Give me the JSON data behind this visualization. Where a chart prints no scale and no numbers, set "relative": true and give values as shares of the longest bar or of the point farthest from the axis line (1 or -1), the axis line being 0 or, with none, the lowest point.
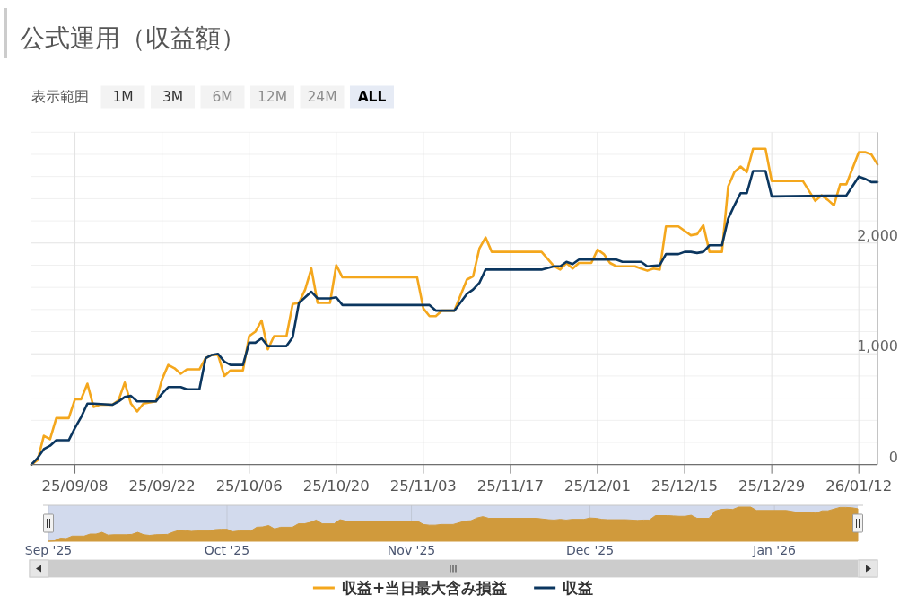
{
  "chart_data": [
    {
      "type": "line",
      "title": "公式運用（収益額）",
      "annotations": [
        "表示範囲",
        "1M",
        "3M",
        "6M",
        "12M",
        "24M",
        "ALL"
      ],
      "xlim": [
        "2025-09-01",
        "2026-01-15"
      ],
      "xticks": [
        {
          "value": "2025-09-08",
          "label": "25/09/08"
        },
        {
          "value": "2025-09-22",
          "label": "25/09/22"
        },
        {
          "value": "2025-10-06",
          "label": "25/10/06"
        },
        {
          "value": "2025-10-20",
          "label": "25/10/20"
        },
        {
          "value": "2025-11-03",
          "label": "25/11/03"
        },
        {
          "value": "2025-11-17",
          "label": "25/11/17"
        },
        {
          "value": "2025-12-01",
          "label": "25/12/01"
        },
        {
          "value": "2025-12-15",
          "label": "25/12/15"
        },
        {
          "value": "2025-12-29",
          "label": "25/12/29"
        },
        {
          "value": "2026-01-12",
          "label": "26/01/12"
        }
      ],
      "ylim": [
        0,
        3000
      ],
      "yticks": [
        0,
        {
          "value": 200,
          "label": null
        },
        {
          "value": 400,
          "label": null
        },
        {
          "value": 600,
          "label": null
        },
        {
          "value": 800,
          "label": null
        },
        {
          "value": 1000,
          "label": "1,000"
        },
        {
          "value": 1200,
          "label": null
        },
        {
          "value": 1400,
          "label": null
        },
        {
          "value": 1600,
          "label": null
        },
        {
          "value": 1800,
          "label": null
        },
        {
          "value": 2000,
          "label": "2,000"
        },
        {
          "value": 2200,
          "label": null
        },
        {
          "value": 2400,
          "label": null
        },
        {
          "value": 2600,
          "label": null
        },
        {
          "value": 2800,
          "label": null
        },
        {
          "value": 3000,
          "label": null
        }
      ],
      "grid": true,
      "legend": "bottom",
      "series": [
        {
          "name": "収益+当日最大含み損益",
          "color": "#f4a71d",
          "x": [
            "2025-09-01",
            "2025-09-02",
            "2025-09-03",
            "2025-09-04",
            "2025-09-05",
            "2025-09-07",
            "2025-09-08",
            "2025-09-09",
            "2025-09-10",
            "2025-09-11",
            "2025-09-12",
            "2025-09-14",
            "2025-09-15",
            "2025-09-16",
            "2025-09-17",
            "2025-09-18",
            "2025-09-19",
            "2025-09-21",
            "2025-09-22",
            "2025-09-23",
            "2025-09-24",
            "2025-09-25",
            "2025-09-26",
            "2025-09-28",
            "2025-09-29",
            "2025-09-30",
            "2025-10-01",
            "2025-10-02",
            "2025-10-03",
            "2025-10-05",
            "2025-10-06",
            "2025-10-07",
            "2025-10-08",
            "2025-10-09",
            "2025-10-10",
            "2025-10-12",
            "2025-10-13",
            "2025-10-14",
            "2025-10-15",
            "2025-10-16",
            "2025-10-17",
            "2025-10-19",
            "2025-10-20",
            "2025-10-21",
            "2025-11-02",
            "2025-11-03",
            "2025-11-04",
            "2025-11-05",
            "2025-11-06",
            "2025-11-08",
            "2025-11-10",
            "2025-11-11",
            "2025-11-12",
            "2025-11-13",
            "2025-11-14",
            "2025-11-22",
            "2025-11-24",
            "2025-11-25",
            "2025-11-26",
            "2025-11-27",
            "2025-11-28",
            "2025-11-30",
            "2025-12-01",
            "2025-12-02",
            "2025-12-03",
            "2025-12-04",
            "2025-12-05",
            "2025-12-07",
            "2025-12-08",
            "2025-12-09",
            "2025-12-10",
            "2025-12-11",
            "2025-12-12",
            "2025-12-14",
            "2025-12-15",
            "2025-12-16",
            "2025-12-17",
            "2025-12-18",
            "2025-12-19",
            "2025-12-21",
            "2025-12-22",
            "2025-12-23",
            "2025-12-24",
            "2025-12-25",
            "2025-12-26",
            "2025-12-28",
            "2025-12-29",
            "2026-01-03",
            "2026-01-05",
            "2026-01-06",
            "2026-01-07",
            "2026-01-08",
            "2026-01-09",
            "2026-01-10",
            "2026-01-12",
            "2026-01-13",
            "2026-01-14",
            "2026-01-15"
          ],
          "values": [
            0,
            40,
            260,
            230,
            420,
            420,
            590,
            590,
            730,
            520,
            540,
            540,
            580,
            740,
            550,
            480,
            550,
            570,
            770,
            900,
            870,
            820,
            860,
            860,
            960,
            990,
            990,
            800,
            850,
            850,
            1160,
            1200,
            1300,
            1040,
            1160,
            1160,
            1450,
            1460,
            1580,
            1770,
            1460,
            1460,
            1800,
            1690,
            1690,
            1410,
            1340,
            1340,
            1390,
            1390,
            1670,
            1700,
            1950,
            2050,
            1920,
            1920,
            1790,
            1760,
            1820,
            1770,
            1820,
            1820,
            1940,
            1900,
            1820,
            1790,
            1790,
            1790,
            1770,
            1750,
            1770,
            1760,
            2150,
            2150,
            2110,
            2070,
            2080,
            2160,
            1920,
            1920,
            2510,
            2640,
            2690,
            2640,
            2850,
            2850,
            2560,
            2560,
            2380,
            2430,
            2390,
            2340,
            2530,
            2530,
            2820,
            2820,
            2800,
            2710
          ]
        },
        {
          "name": "収益",
          "color": "#0b365f",
          "x": [
            "2025-09-01",
            "2025-09-02",
            "2025-09-03",
            "2025-09-04",
            "2025-09-05",
            "2025-09-07",
            "2025-09-08",
            "2025-09-09",
            "2025-09-10",
            "2025-09-11",
            "2025-09-14",
            "2025-09-15",
            "2025-09-16",
            "2025-09-17",
            "2025-09-18",
            "2025-09-21",
            "2025-09-22",
            "2025-09-23",
            "2025-09-25",
            "2025-09-26",
            "2025-09-28",
            "2025-09-29",
            "2025-09-30",
            "2025-10-01",
            "2025-10-02",
            "2025-10-03",
            "2025-10-05",
            "2025-10-06",
            "2025-10-07",
            "2025-10-08",
            "2025-10-09",
            "2025-10-12",
            "2025-10-13",
            "2025-10-14",
            "2025-10-15",
            "2025-10-16",
            "2025-10-17",
            "2025-10-19",
            "2025-10-20",
            "2025-10-21",
            "2025-11-04",
            "2025-11-05",
            "2025-11-08",
            "2025-11-10",
            "2025-11-11",
            "2025-11-12",
            "2025-11-13",
            "2025-11-22",
            "2025-11-24",
            "2025-11-25",
            "2025-11-26",
            "2025-11-27",
            "2025-11-28",
            "2025-12-04",
            "2025-12-05",
            "2025-12-08",
            "2025-12-09",
            "2025-12-11",
            "2025-12-12",
            "2025-12-14",
            "2025-12-15",
            "2025-12-16",
            "2025-12-17",
            "2025-12-18",
            "2025-12-19",
            "2025-12-21",
            "2025-12-22",
            "2025-12-23",
            "2025-12-24",
            "2025-12-25",
            "2025-12-26",
            "2025-12-28",
            "2025-12-29",
            "2026-01-10",
            "2026-01-12",
            "2026-01-13",
            "2026-01-14",
            "2026-01-15"
          ],
          "values": [
            0,
            60,
            140,
            170,
            220,
            220,
            330,
            430,
            550,
            550,
            540,
            570,
            610,
            620,
            570,
            570,
            640,
            700,
            700,
            680,
            680,
            960,
            990,
            1000,
            930,
            900,
            900,
            1100,
            1100,
            1140,
            1070,
            1070,
            1150,
            1460,
            1510,
            1560,
            1500,
            1500,
            1510,
            1440,
            1440,
            1390,
            1390,
            1540,
            1580,
            1640,
            1760,
            1760,
            1790,
            1790,
            1830,
            1810,
            1850,
            1850,
            1830,
            1830,
            1790,
            1800,
            1900,
            1900,
            1920,
            1920,
            1910,
            1920,
            1980,
            1980,
            2220,
            2340,
            2450,
            2450,
            2650,
            2650,
            2420,
            2430,
            2600,
            2580,
            2550,
            2550
          ]
        }
      ]
    },
    {
      "type": "area",
      "relative": true,
      "color": "#d09a3c",
      "tick_labels": "x",
      "grid": "x",
      "xlim": [
        "2025-09-01",
        "2026-01-15"
      ],
      "xticks": [
        {
          "value": "2025-09-01",
          "label": "Sep '25"
        },
        {
          "value": "2025-10-01",
          "label": "Oct '25"
        },
        {
          "value": "2025-11-01",
          "label": "Nov '25"
        },
        {
          "value": "2025-12-01",
          "label": "Dec '25"
        },
        {
          "value": "2026-01-01",
          "label": "Jan '26"
        }
      ],
      "bands": [
        {
          "axis": "x",
          "from": "2025-09-01",
          "to": "2026-01-15",
          "color": "#d2daed"
        }
      ],
      "x": [
        "2025-09-01",
        "2025-09-02",
        "2025-09-03",
        "2025-09-04",
        "2025-09-05",
        "2025-09-07",
        "2025-09-08",
        "2025-09-09",
        "2025-09-10",
        "2025-09-11",
        "2025-09-12",
        "2025-09-14",
        "2025-09-15",
        "2025-09-16",
        "2025-09-17",
        "2025-09-18",
        "2025-09-19",
        "2025-09-21",
        "2025-09-22",
        "2025-09-23",
        "2025-09-24",
        "2025-09-25",
        "2025-09-26",
        "2025-09-28",
        "2025-09-29",
        "2025-09-30",
        "2025-10-01",
        "2025-10-02",
        "2025-10-03",
        "2025-10-05",
        "2025-10-06",
        "2025-10-07",
        "2025-10-08",
        "2025-10-09",
        "2025-10-10",
        "2025-10-12",
        "2025-10-13",
        "2025-10-14",
        "2025-10-15",
        "2025-10-16",
        "2025-10-17",
        "2025-10-19",
        "2025-10-20",
        "2025-10-21",
        "2025-11-02",
        "2025-11-03",
        "2025-11-04",
        "2025-11-05",
        "2025-11-06",
        "2025-11-08",
        "2025-11-10",
        "2025-11-11",
        "2025-11-12",
        "2025-11-13",
        "2025-11-14",
        "2025-11-22",
        "2025-11-24",
        "2025-11-25",
        "2025-11-26",
        "2025-11-27",
        "2025-11-28",
        "2025-11-30",
        "2025-12-01",
        "2025-12-02",
        "2025-12-03",
        "2025-12-04",
        "2025-12-05",
        "2025-12-07",
        "2025-12-08",
        "2025-12-09",
        "2025-12-10",
        "2025-12-11",
        "2025-12-12",
        "2025-12-14",
        "2025-12-15",
        "2025-12-16",
        "2025-12-17",
        "2025-12-18",
        "2025-12-19",
        "2025-12-21",
        "2025-12-22",
        "2025-12-23",
        "2025-12-24",
        "2025-12-25",
        "2025-12-26",
        "2025-12-28",
        "2025-12-29",
        "2026-01-03",
        "2026-01-05",
        "2026-01-06",
        "2026-01-07",
        "2026-01-08",
        "2026-01-09",
        "2026-01-10",
        "2026-01-12",
        "2026-01-13",
        "2026-01-14",
        "2026-01-15"
      ],
      "values": [
        0,
        0.01,
        0.09,
        0.08,
        0.15,
        0.15,
        0.21,
        0.21,
        0.26,
        0.18,
        0.19,
        0.19,
        0.2,
        0.26,
        0.19,
        0.17,
        0.19,
        0.2,
        0.27,
        0.32,
        0.31,
        0.29,
        0.3,
        0.3,
        0.34,
        0.35,
        0.35,
        0.28,
        0.3,
        0.3,
        0.41,
        0.42,
        0.46,
        0.36,
        0.41,
        0.41,
        0.51,
        0.51,
        0.55,
        0.62,
        0.51,
        0.51,
        0.63,
        0.59,
        0.59,
        0.49,
        0.47,
        0.47,
        0.49,
        0.49,
        0.59,
        0.6,
        0.68,
        0.72,
        0.67,
        0.67,
        0.63,
        0.62,
        0.64,
        0.62,
        0.64,
        0.64,
        0.68,
        0.67,
        0.64,
        0.63,
        0.63,
        0.63,
        0.62,
        0.61,
        0.62,
        0.62,
        0.75,
        0.75,
        0.74,
        0.73,
        0.73,
        0.76,
        0.67,
        0.67,
        0.88,
        0.93,
        0.94,
        0.93,
        1,
        1,
        0.9,
        0.9,
        0.84,
        0.85,
        0.84,
        0.82,
        0.89,
        0.89,
        0.99,
        0.99,
        0.98,
        0.95
      ]
    }
  ]
}
